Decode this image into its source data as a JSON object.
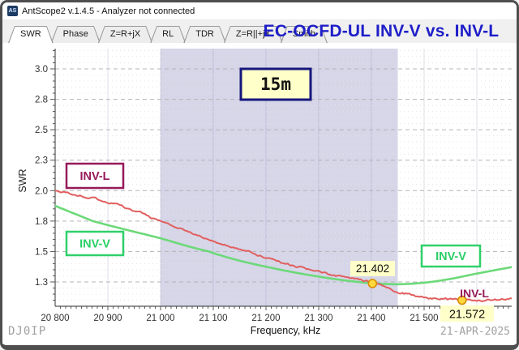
{
  "window": {
    "title": "AntScope2 v.1.4.5 - Analyzer not connected",
    "icon_text": "AS"
  },
  "tabs": [
    {
      "label": "SWR",
      "active": true
    },
    {
      "label": "Phase",
      "active": false
    },
    {
      "label": "Z=R+jX",
      "active": false
    },
    {
      "label": "RL",
      "active": false
    },
    {
      "label": "TDR",
      "active": false
    },
    {
      "label": "Z=R||+jX",
      "active": false
    },
    {
      "label": "Smith",
      "active": false
    }
  ],
  "header": {
    "title": "EC-OCFD-UL INV-V vs. INV-L",
    "title_color": "#1e1ec8"
  },
  "footer": {
    "callsign": "DJ0IP",
    "date": "21-APR-2025"
  },
  "chart_data": {
    "type": "line",
    "title": "EC-OCFD-UL INV-V vs. INV-L",
    "xlabel": "Frequency, kHz",
    "ylabel": "SWR",
    "x_range_khz": [
      20800,
      21667
    ],
    "x_ticks": [
      20800,
      20900,
      21000,
      21100,
      21200,
      21300,
      21400,
      21500,
      21600
    ],
    "x_tick_labels": [
      "20 800",
      "20 900",
      "21 000",
      "21 100",
      "21 200",
      "21 300",
      "21 400",
      "21 500",
      "21 600"
    ],
    "y_ticks": [
      3.0,
      2.8,
      2.5,
      2.3,
      2.0,
      1.8,
      1.5,
      1.3
    ],
    "y_tick_labels": [
      "3.0",
      "2.8",
      "2.5",
      "2.3",
      "2.0",
      "1.8",
      "1.5",
      "1.3"
    ],
    "y_scale_note": "nonlinear SWR scale, labeled ticks equally spaced",
    "grid": true,
    "band": {
      "label": "15m",
      "start_khz": 21000,
      "end_khz": 21450,
      "color": "#d6d6e8"
    },
    "series": [
      {
        "name": "INV-V",
        "color": "#6cd978",
        "style": "smooth",
        "noise": 0,
        "points": [
          [
            20800,
            1.9
          ],
          [
            20850,
            1.83
          ],
          [
            20900,
            1.76
          ],
          [
            20950,
            1.695
          ],
          [
            21000,
            1.63
          ],
          [
            21050,
            1.555
          ],
          [
            21100,
            1.49
          ],
          [
            21150,
            1.44
          ],
          [
            21200,
            1.4
          ],
          [
            21250,
            1.365
          ],
          [
            21300,
            1.335
          ],
          [
            21350,
            1.31
          ],
          [
            21400,
            1.292
          ],
          [
            21450,
            1.285
          ],
          [
            21500,
            1.295
          ],
          [
            21550,
            1.32
          ],
          [
            21600,
            1.355
          ],
          [
            21670,
            1.4
          ]
        ]
      },
      {
        "name": "INV-L",
        "color": "#e15f5f",
        "style": "noisy",
        "noise": 0.013,
        "points": [
          [
            20800,
            2.0
          ],
          [
            20850,
            1.965
          ],
          [
            20900,
            1.925
          ],
          [
            20950,
            1.87
          ],
          [
            21000,
            1.795
          ],
          [
            21050,
            1.7
          ],
          [
            21100,
            1.6
          ],
          [
            21150,
            1.525
          ],
          [
            21200,
            1.46
          ],
          [
            21250,
            1.41
          ],
          [
            21300,
            1.365
          ],
          [
            21350,
            1.33
          ],
          [
            21400,
            1.295
          ],
          [
            21450,
            1.235
          ],
          [
            21500,
            1.2
          ],
          [
            21550,
            1.185
          ],
          [
            21600,
            1.18
          ],
          [
            21640,
            1.185
          ],
          [
            21670,
            1.2
          ]
        ]
      }
    ],
    "markers": [
      {
        "freq_khz": 21402,
        "swr": 1.29,
        "label": "21.402"
      },
      {
        "freq_khz": 21572,
        "swr": 1.18,
        "label": "21.572"
      }
    ],
    "curve_labels": [
      {
        "text": "INV-L",
        "color": "#961a5a",
        "boxed": true,
        "position": "left-upper"
      },
      {
        "text": "INV-V",
        "color": "#29cf66",
        "boxed": true,
        "position": "left-lower"
      },
      {
        "text": "INV-V",
        "color": "#29cf66",
        "boxed": true,
        "position": "right"
      },
      {
        "text": "INV-L",
        "color": "#961a5a",
        "boxed": false,
        "position": "right-lower"
      }
    ],
    "marker_color": {
      "fill": "#ffd83d",
      "stroke": "#d88c00"
    },
    "label_box_color": "#ffffc9",
    "band_label_border": "#16167e"
  }
}
